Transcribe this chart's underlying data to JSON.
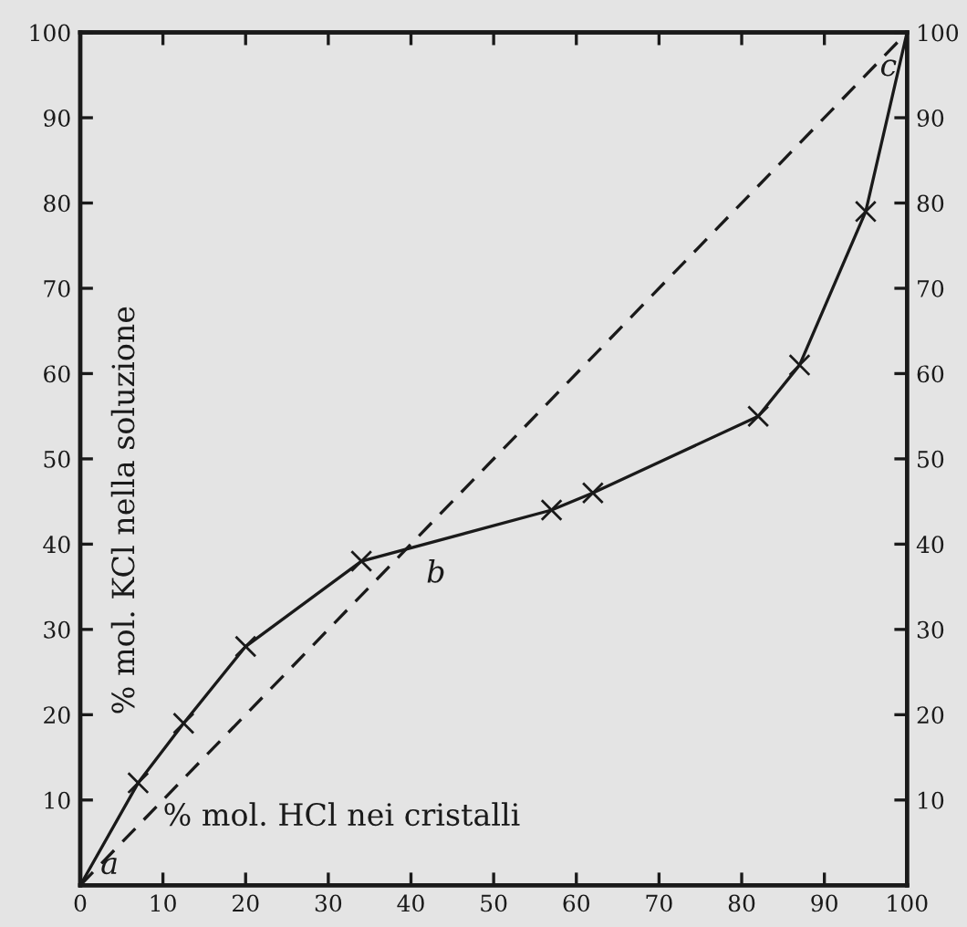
{
  "chart_data": {
    "type": "line",
    "xlabel": "% mol. HCl nei cristalli",
    "ylabel": "% mol. KCl nella soluzione",
    "series": [
      {
        "color": "#1a1a1a",
        "line_style": "solid",
        "marker": "none",
        "x": [
          0,
          7,
          12.5,
          20,
          34,
          57,
          62,
          82,
          87,
          95,
          100
        ],
        "values": [
          0,
          12,
          19,
          28,
          38,
          44,
          46,
          55,
          61,
          79,
          100
        ]
      },
      {
        "type": "scatter",
        "color": "#1a1a1a",
        "marker": "cross",
        "x": [
          7,
          12.5,
          20,
          34,
          57,
          62,
          82,
          87,
          95
        ],
        "values": [
          12,
          19,
          28,
          38,
          44,
          46,
          55,
          61,
          79
        ]
      },
      {
        "type": "line",
        "color": "#1a1a1a",
        "line_style": "dashed",
        "marker": "none",
        "x": [
          0,
          100
        ],
        "values": [
          0,
          100
        ]
      }
    ],
    "annotations": [
      {
        "text": "a",
        "x": 0,
        "y": 0
      },
      {
        "text": "b",
        "x": 40,
        "y": 40
      },
      {
        "text": "c",
        "x": 100,
        "y": 100
      }
    ],
    "xlim": [
      0,
      100
    ],
    "xticks": [
      0,
      10,
      20,
      30,
      40,
      50,
      60,
      70,
      80,
      90,
      100
    ],
    "ylim": [
      0,
      100
    ],
    "yticks": [
      10,
      20,
      30,
      40,
      50,
      60,
      70,
      80,
      90,
      100
    ],
    "y2lim": [
      0,
      100
    ],
    "y2ticks": [
      10,
      20,
      30,
      40,
      50,
      60,
      70,
      80,
      90,
      100
    ],
    "grid": false,
    "legend": false
  }
}
